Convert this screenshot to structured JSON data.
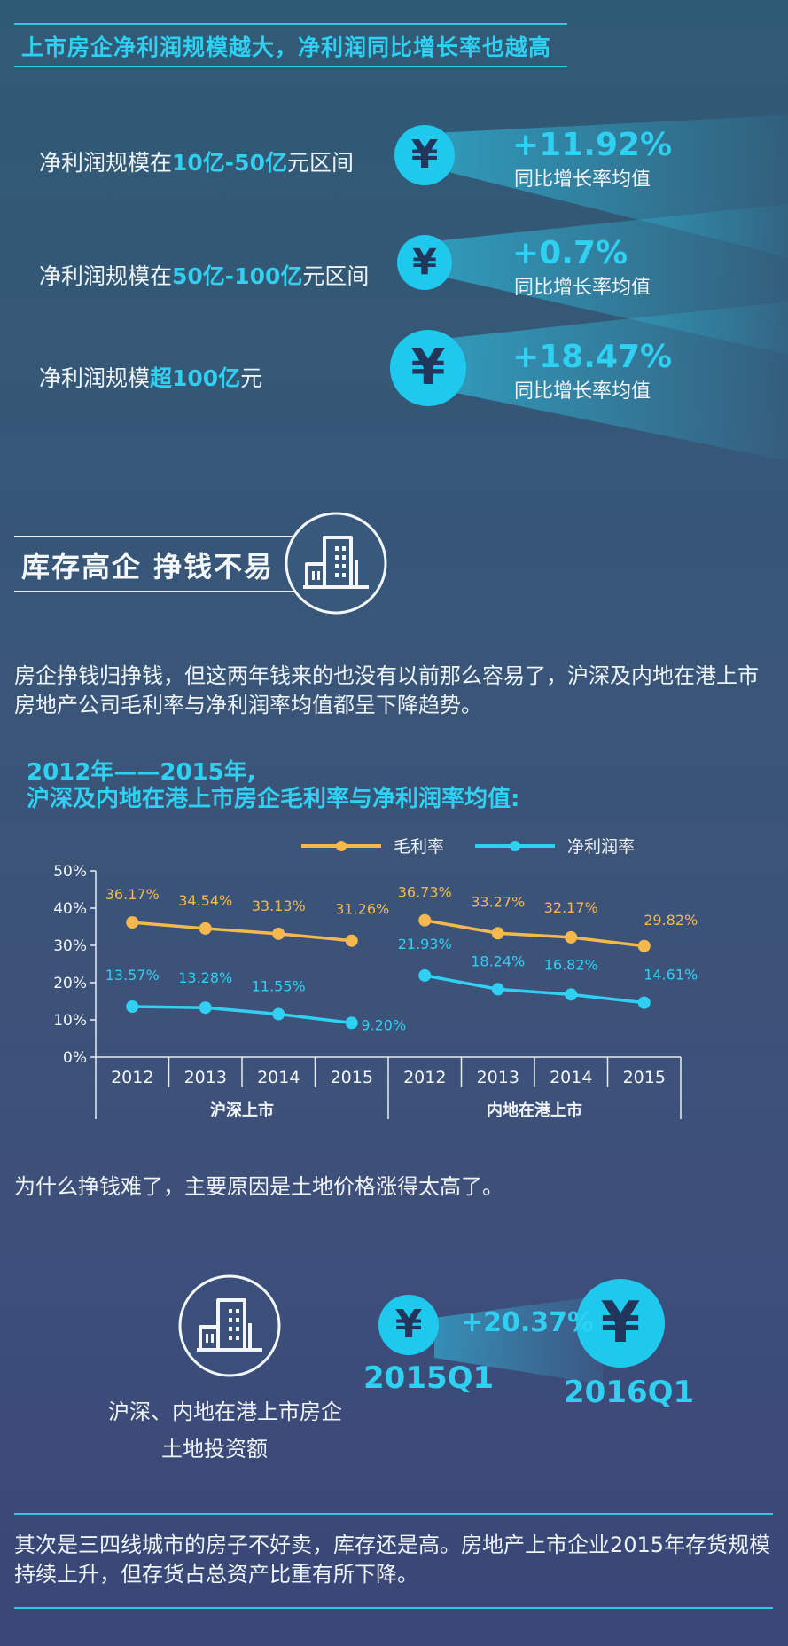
{
  "section1": {
    "heading": "上市房企净利润规模越大，净利润同比增长率也越高",
    "rows": [
      {
        "prefix": "净利润规模在",
        "highlight": "10亿-50亿",
        "suffix": "元区间",
        "value": "+11.92%",
        "caption": "同比增长率均值"
      },
      {
        "prefix": "净利润规模在",
        "highlight": "50亿-100亿",
        "suffix": "元区间",
        "value": "+0.7%",
        "caption": "同比增长率均值"
      },
      {
        "prefix": "净利润规模",
        "highlight": "超100亿",
        "suffix": "元",
        "value": "+18.47%",
        "caption": "同比增长率均值"
      }
    ],
    "yen_symbol": "¥"
  },
  "section2": {
    "heading": "库存高企  挣钱不易",
    "icon": "building-icon",
    "paragraph": "房企挣钱归挣钱，但这两年钱来的也没有以前那么容易了，沪深及内地在港上市房地产公司毛利率与净利润率均值都呈下降趋势。"
  },
  "chart_title": {
    "line1": "2012年——2015年,",
    "line2": "沪深及内地在港上市房企毛利率与净利润率均值:"
  },
  "chart_data": {
    "type": "line",
    "groups": [
      "沪深上市",
      "内地在港上市"
    ],
    "categories": [
      "2012",
      "2013",
      "2014",
      "2015",
      "2012",
      "2013",
      "2014",
      "2015"
    ],
    "series": [
      {
        "name": "毛利率",
        "color": "#f5b84c",
        "values": [
          36.17,
          34.54,
          33.13,
          31.26,
          36.73,
          33.27,
          32.17,
          29.82
        ],
        "labels": [
          "36.17%",
          "34.54%",
          "33.13%",
          "31.26%",
          "36.73%",
          "33.27%",
          "32.17%",
          "29.82%"
        ]
      },
      {
        "name": "净利润率",
        "color": "#2fd0f2",
        "values": [
          13.57,
          13.28,
          11.55,
          9.2,
          21.93,
          18.24,
          16.82,
          14.61
        ],
        "labels": [
          "13.57%",
          "13.28%",
          "11.55%",
          "9.20%",
          "21.93%",
          "18.24%",
          "16.82%",
          "14.61%"
        ]
      }
    ],
    "yticks": [
      "0%",
      "10%",
      "20%",
      "30%",
      "40%",
      "50%"
    ],
    "ylim": [
      0,
      50
    ],
    "grid": false,
    "legend": "top-center"
  },
  "section3": {
    "sentence": "为什么挣钱难了，主要原因是土地价格涨得太高了。",
    "caption_line1": "沪深、内地在港上市房企",
    "caption_line2": "土地投资额",
    "growth": "+20.37%",
    "from_label": "2015Q1",
    "to_label": "2016Q1"
  },
  "section4": {
    "paragraph": "其次是三四线城市的房子不好卖，库存还是高。房地产上市企业2015年存货规模持续上升，但存货占总资产比重有所下降。"
  },
  "colors": {
    "accent": "#2fd0f2",
    "gold": "#f5b84c",
    "background": "#35567a"
  }
}
